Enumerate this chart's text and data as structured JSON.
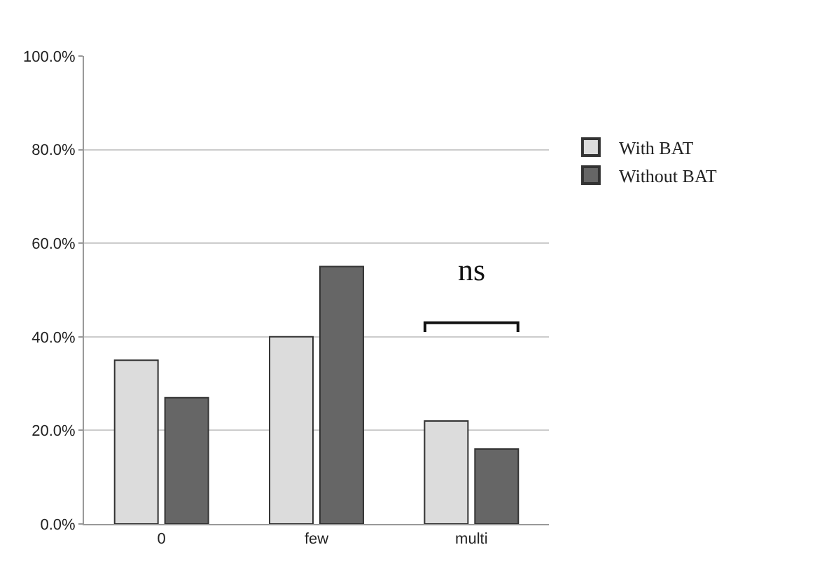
{
  "chart_data": {
    "type": "bar",
    "categories": [
      "0",
      "few",
      "multi"
    ],
    "series": [
      {
        "name": "With BAT",
        "color": "#dcdcdc",
        "values": [
          35,
          40,
          22
        ]
      },
      {
        "name": "Without BAT",
        "color": "#666666",
        "values": [
          27,
          55,
          16
        ]
      }
    ],
    "ylim": [
      0,
      100
    ],
    "yticks": [
      {
        "value": 0,
        "label": "0.0%"
      },
      {
        "value": 20,
        "label": "20.0%"
      },
      {
        "value": 40,
        "label": "40.0%"
      },
      {
        "value": 60,
        "label": "60.0%"
      },
      {
        "value": 80,
        "label": "80.0%"
      },
      {
        "value": 100,
        "label": "100.0%"
      }
    ],
    "grid": "y",
    "legend": "right",
    "annotations": [
      "ns"
    ]
  }
}
